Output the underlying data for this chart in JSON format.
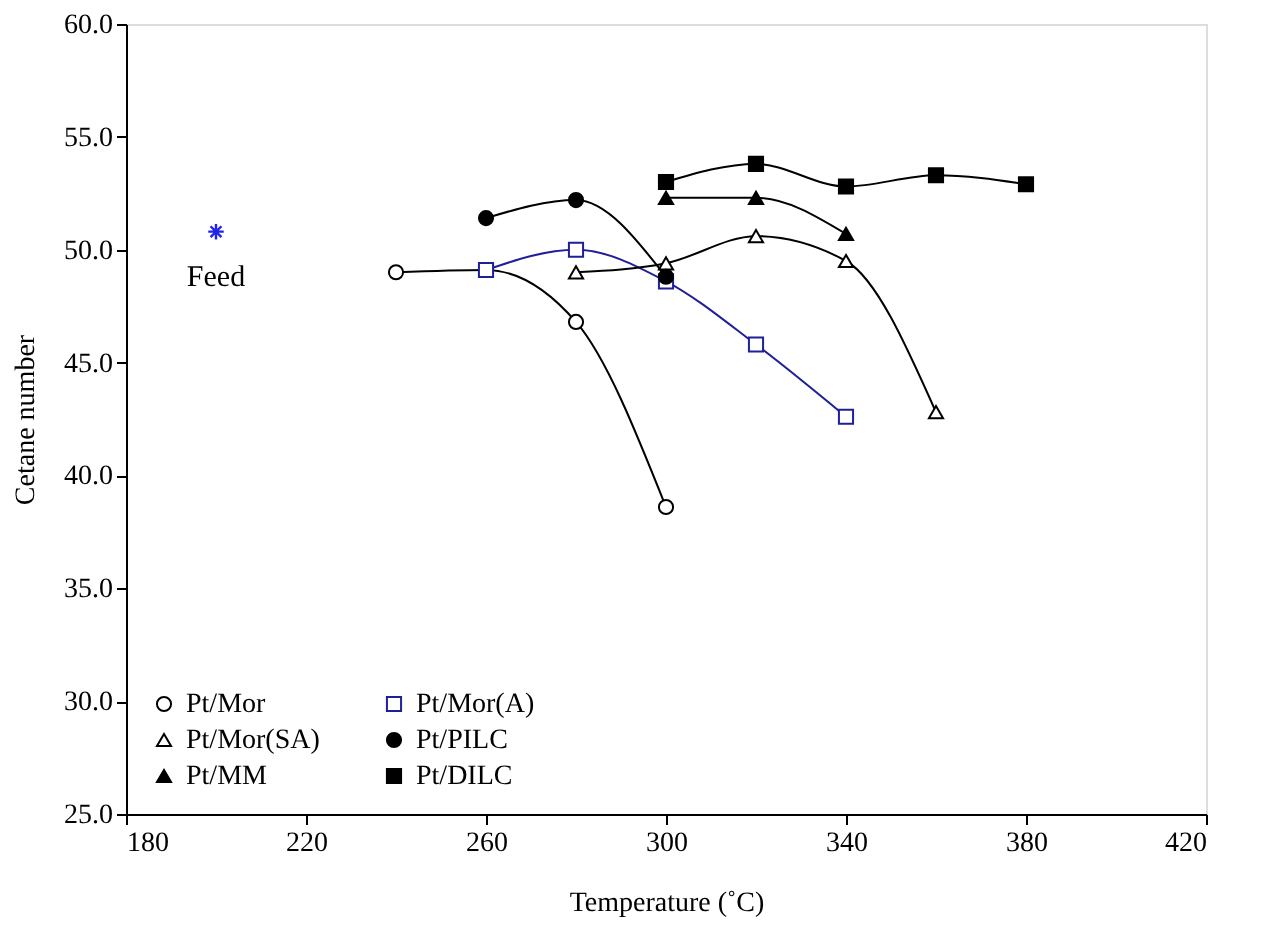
{
  "chart_data": {
    "type": "line",
    "xlabel": "Temperature (˚C)",
    "ylabel": "Cetane number",
    "xlim": [
      180,
      420
    ],
    "xticks": [
      180,
      220,
      260,
      300,
      340,
      380,
      420
    ],
    "ylim": [
      25,
      60
    ],
    "yticks": [
      {
        "value": 25,
        "label": "25.0"
      },
      {
        "value": 30,
        "label": "30.0"
      },
      {
        "value": 35,
        "label": "35.0"
      },
      {
        "value": 40,
        "label": "40.0"
      },
      {
        "value": 45,
        "label": "45.0"
      },
      {
        "value": 50,
        "label": "50.0"
      },
      {
        "value": 55,
        "label": "55.0"
      },
      {
        "value": 60,
        "label": "60.0"
      }
    ],
    "legend": "bottom left",
    "series": [
      {
        "name": "Pt/Mor",
        "color": "#000000",
        "marker": "circle-open",
        "x": [
          240,
          260,
          280,
          300
        ],
        "values": [
          49.0,
          49.1,
          46.8,
          38.6
        ]
      },
      {
        "name": "Pt/Mor(A)",
        "color": "#1f1f99",
        "marker": "square-open",
        "x": [
          260,
          280,
          300,
          320,
          340
        ],
        "values": [
          49.1,
          50.0,
          48.6,
          45.8,
          42.6
        ]
      },
      {
        "name": "Pt/Mor(SA)",
        "color": "#000000",
        "marker": "triangle-open",
        "x": [
          280,
          300,
          320,
          340,
          360
        ],
        "values": [
          49.0,
          49.4,
          50.6,
          49.5,
          42.8
        ]
      },
      {
        "name": "Pt/PILC",
        "color": "#000000",
        "marker": "circle",
        "x": [
          260,
          280,
          300
        ],
        "values": [
          51.4,
          52.2,
          48.8
        ]
      },
      {
        "name": "Pt/MM",
        "color": "#000000",
        "marker": "triangle",
        "x": [
          300,
          320,
          340
        ],
        "values": [
          52.3,
          52.3,
          50.7
        ]
      },
      {
        "name": "Pt/DILC",
        "color": "#000000",
        "marker": "square",
        "x": [
          300,
          320,
          340,
          360,
          380
        ],
        "values": [
          53.0,
          53.8,
          52.8,
          53.3,
          52.9
        ]
      },
      {
        "name": "Feed",
        "type": "scatter",
        "color": "#2222ee",
        "marker": "cross",
        "x": [
          200
        ],
        "values": [
          50.8
        ]
      }
    ]
  }
}
